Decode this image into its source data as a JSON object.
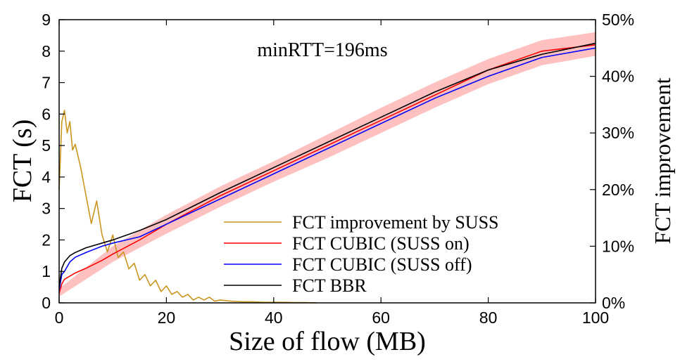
{
  "chart_data": {
    "type": "line",
    "annotation": "minRTT=196ms",
    "xlabel": "Size of flow (MB)",
    "ylabel": "FCT (s)",
    "y2label": "FCT improvement",
    "xlim": [
      0,
      100
    ],
    "ylim": [
      0,
      9
    ],
    "y2lim": [
      0,
      50
    ],
    "x_ticks": [
      "0",
      "20",
      "40",
      "60",
      "80",
      "100"
    ],
    "y_ticks": [
      "0",
      "1",
      "2",
      "3",
      "4",
      "5",
      "6",
      "7",
      "8",
      "9"
    ],
    "y2_ticks": [
      "0%",
      "10%",
      "20%",
      "30%",
      "40%",
      "50%"
    ],
    "grid": false,
    "legend_position": "bottom-right",
    "series": [
      {
        "name": "FCT improvement by SUSS",
        "axis": "right",
        "color": "#c8961e",
        "x": [
          0,
          0.5,
          1,
          1.5,
          2,
          2.5,
          3,
          4,
          5,
          6,
          7,
          8,
          9,
          10,
          11,
          12,
          13,
          14,
          15,
          16,
          17,
          18,
          19,
          20,
          21,
          22,
          23,
          24,
          25,
          26,
          27,
          28,
          29,
          30,
          32,
          34,
          36,
          38,
          40,
          42,
          44,
          46,
          48
        ],
        "values": [
          20,
          32,
          34,
          30,
          32,
          27,
          28,
          24,
          19,
          14,
          18,
          12,
          9,
          12,
          8,
          9,
          6,
          7,
          4,
          5,
          3,
          4,
          2,
          3,
          1.5,
          2,
          1,
          1.5,
          0.5,
          1,
          0.5,
          1,
          0.3,
          0.5,
          0.3,
          0.2,
          0.2,
          0.1,
          0.1,
          0.1,
          0.05,
          0.05,
          0
        ]
      },
      {
        "name": "FCT CUBIC (SUSS on)",
        "axis": "left",
        "color": "#ff0000",
        "x": [
          0,
          0.5,
          1,
          2,
          3,
          5,
          8,
          10,
          15,
          20,
          30,
          40,
          50,
          60,
          70,
          80,
          90,
          100
        ],
        "values": [
          0.3,
          0.6,
          0.75,
          0.85,
          0.95,
          1.1,
          1.35,
          1.55,
          2.0,
          2.5,
          3.4,
          4.2,
          5.0,
          5.8,
          6.6,
          7.4,
          8.0,
          8.2
        ]
      },
      {
        "name": "FCT CUBIC (SUSS off)",
        "axis": "left",
        "color": "#0000ff",
        "x": [
          0,
          0.5,
          1,
          2,
          3,
          5,
          8,
          10,
          15,
          20,
          30,
          40,
          50,
          60,
          70,
          80,
          90,
          100
        ],
        "values": [
          0.4,
          0.9,
          1.0,
          1.3,
          1.45,
          1.6,
          1.8,
          1.9,
          2.1,
          2.5,
          3.3,
          4.1,
          4.9,
          5.7,
          6.5,
          7.2,
          7.8,
          8.1
        ]
      },
      {
        "name": "FCT BBR",
        "axis": "left",
        "color": "#000000",
        "x": [
          0,
          0.5,
          1,
          2,
          3,
          5,
          8,
          10,
          15,
          20,
          30,
          40,
          50,
          60,
          70,
          80,
          90,
          100
        ],
        "values": [
          0.5,
          1.1,
          1.3,
          1.5,
          1.6,
          1.75,
          1.9,
          2.0,
          2.3,
          2.65,
          3.5,
          4.3,
          5.1,
          5.9,
          6.7,
          7.4,
          7.9,
          8.25
        ]
      }
    ],
    "band": {
      "color": "#ffc0c0",
      "x": [
        0,
        10,
        20,
        30,
        40,
        50,
        60,
        70,
        80,
        90,
        100
      ],
      "lower": [
        0.2,
        1.3,
        2.2,
        3.05,
        3.85,
        4.6,
        5.4,
        6.2,
        6.95,
        7.55,
        7.85
      ],
      "upper": [
        0.45,
        1.8,
        2.8,
        3.7,
        4.5,
        5.35,
        6.2,
        7.0,
        7.75,
        8.35,
        8.6
      ]
    }
  }
}
